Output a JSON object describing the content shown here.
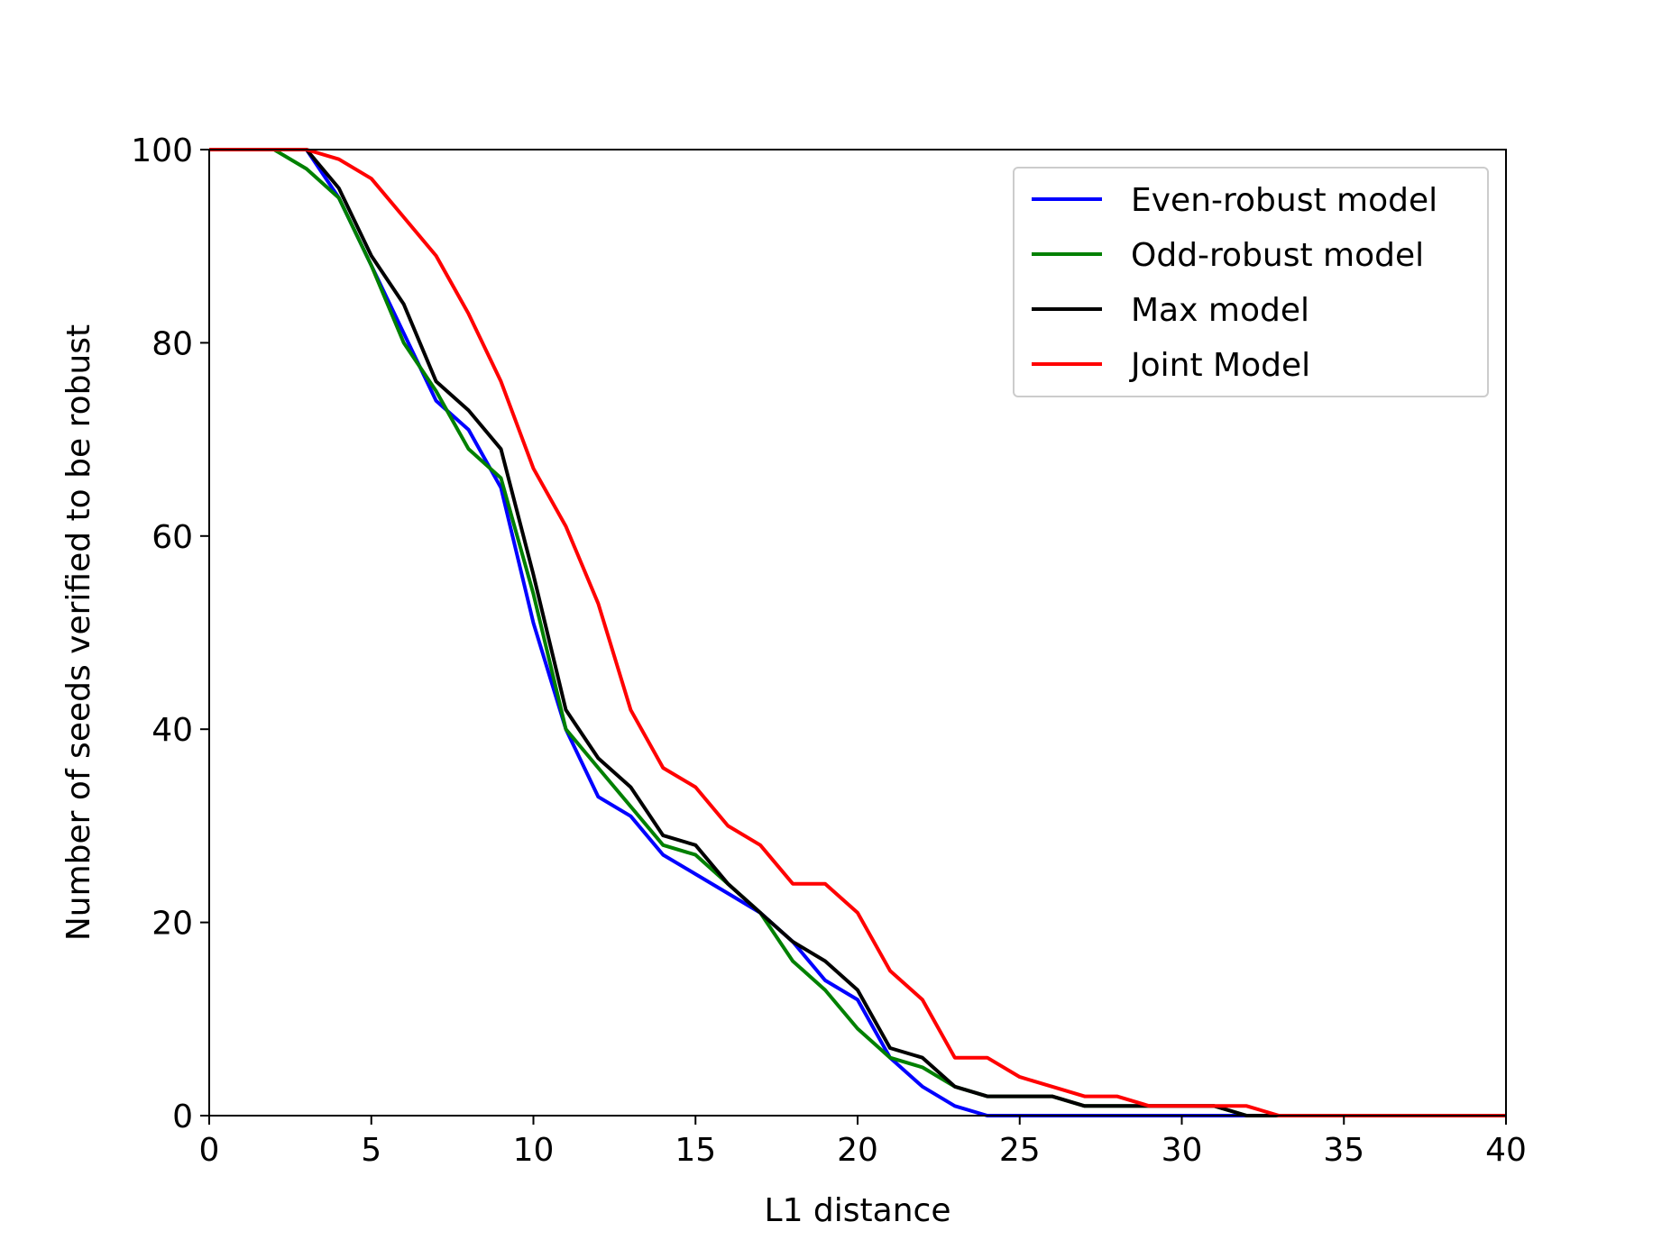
{
  "chart_data": {
    "type": "line",
    "title": "",
    "xlabel": "L1 distance",
    "ylabel": "Number of seeds verified to be robust",
    "xlim": [
      0,
      40
    ],
    "ylim": [
      0,
      100
    ],
    "xticks": [
      0,
      5,
      10,
      15,
      20,
      25,
      30,
      35,
      40
    ],
    "yticks": [
      0,
      20,
      40,
      60,
      80,
      100
    ],
    "grid": false,
    "legend_position": "top-right",
    "x": [
      0,
      1,
      2,
      3,
      4,
      5,
      6,
      7,
      8,
      9,
      10,
      11,
      12,
      13,
      14,
      15,
      16,
      17,
      18,
      19,
      20,
      21,
      22,
      23,
      24,
      25,
      26,
      27,
      28,
      29,
      30,
      31,
      32,
      33,
      34,
      35,
      36,
      37,
      38,
      39,
      40
    ],
    "series": [
      {
        "name": "Even-robust model",
        "color": "#0000ff",
        "values": [
          100,
          100,
          100,
          100,
          95,
          88,
          81,
          74,
          71,
          65,
          51,
          40,
          33,
          31,
          27,
          25,
          23,
          21,
          18,
          14,
          12,
          6,
          3,
          1,
          0,
          0,
          0,
          0,
          0,
          0,
          0,
          0,
          0,
          0,
          0,
          0,
          0,
          0,
          0,
          0,
          0
        ]
      },
      {
        "name": "Odd-robust model",
        "color": "#008000",
        "values": [
          100,
          100,
          100,
          98,
          95,
          88,
          80,
          75,
          69,
          66,
          54,
          40,
          36,
          32,
          28,
          27,
          24,
          21,
          16,
          13,
          9,
          6,
          5,
          3,
          2,
          2,
          2,
          1,
          1,
          1,
          1,
          1,
          0,
          0,
          0,
          0,
          0,
          0,
          0,
          0,
          0
        ]
      },
      {
        "name": "Max model",
        "color": "#000000",
        "values": [
          100,
          100,
          100,
          100,
          96,
          89,
          84,
          76,
          73,
          69,
          56,
          42,
          37,
          34,
          29,
          28,
          24,
          21,
          18,
          16,
          13,
          7,
          6,
          3,
          2,
          2,
          2,
          1,
          1,
          1,
          1,
          1,
          0,
          0,
          0,
          0,
          0,
          0,
          0,
          0,
          0
        ]
      },
      {
        "name": "Joint Model",
        "color": "#ff0000",
        "values": [
          100,
          100,
          100,
          100,
          99,
          97,
          93,
          89,
          83,
          76,
          67,
          61,
          53,
          42,
          36,
          34,
          30,
          28,
          24,
          24,
          21,
          15,
          12,
          6,
          6,
          4,
          3,
          2,
          2,
          1,
          1,
          1,
          1,
          0,
          0,
          0,
          0,
          0,
          0,
          0,
          0
        ]
      }
    ]
  }
}
